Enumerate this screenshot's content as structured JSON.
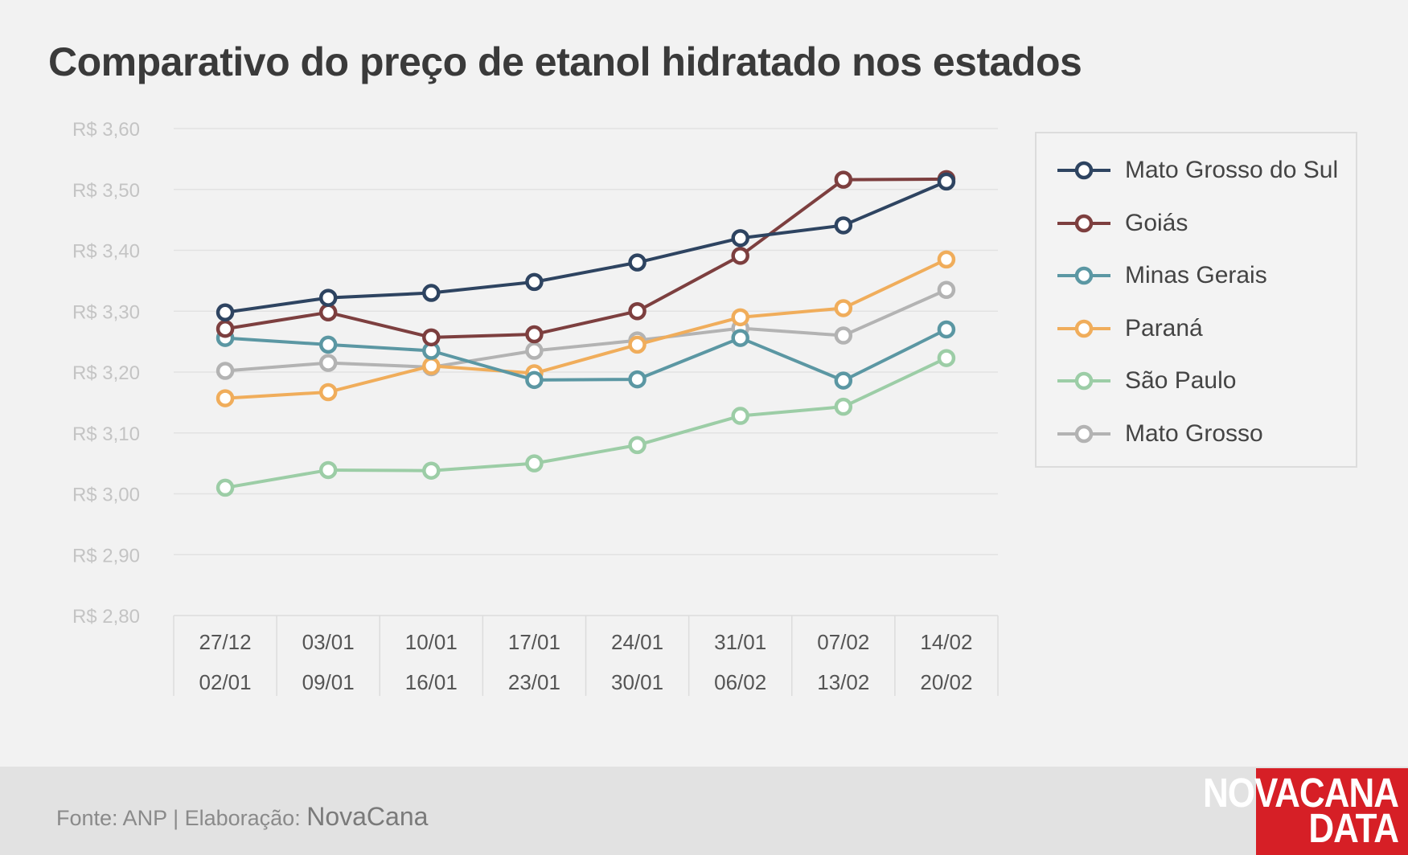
{
  "header": {
    "title": "Comparativo do preço de etanol hidratado nos estados"
  },
  "chart_data": {
    "type": "line",
    "title": "Comparativo do preço de etanol hidratado nos estados",
    "categories": [
      [
        "27/12",
        "02/01"
      ],
      [
        "03/01",
        "09/01"
      ],
      [
        "10/01",
        "16/01"
      ],
      [
        "17/01",
        "23/01"
      ],
      [
        "24/01",
        "30/01"
      ],
      [
        "31/01",
        "06/02"
      ],
      [
        "07/02",
        "13/02"
      ],
      [
        "14/02",
        "20/02"
      ]
    ],
    "ylim": [
      2.8,
      3.6
    ],
    "yticks": [
      3.6,
      3.5,
      3.4,
      3.3,
      3.2,
      3.1,
      3.0,
      2.9,
      2.8
    ],
    "ytick_labels": [
      "R$ 3,60",
      "R$ 3,50",
      "R$ 3,40",
      "R$ 3,30",
      "R$ 3,20",
      "R$ 3,10",
      "R$ 3,00",
      "R$ 2,90",
      "R$ 2,80"
    ],
    "grid": true,
    "legend_position": "right",
    "series": [
      {
        "name": "Mato Grosso do Sul",
        "color": "#2e4461",
        "values": [
          3.298,
          3.322,
          3.33,
          3.348,
          3.38,
          3.42,
          3.441,
          3.513
        ]
      },
      {
        "name": "Goiás",
        "color": "#7d3f3f",
        "values": [
          3.271,
          3.298,
          3.257,
          3.262,
          3.3,
          3.391,
          3.516,
          3.517
        ]
      },
      {
        "name": "Minas Gerais",
        "color": "#5b97a3",
        "values": [
          3.256,
          3.245,
          3.235,
          3.187,
          3.188,
          3.256,
          3.186,
          3.27
        ]
      },
      {
        "name": "Paraná",
        "color": "#f0ad5b",
        "values": [
          3.157,
          3.167,
          3.21,
          3.198,
          3.245,
          3.29,
          3.305,
          3.385
        ]
      },
      {
        "name": "São Paulo",
        "color": "#9ccda6",
        "values": [
          3.01,
          3.039,
          3.038,
          3.05,
          3.08,
          3.128,
          3.143,
          3.223
        ]
      },
      {
        "name": "Mato Grosso",
        "color": "#b3b3b3",
        "values": [
          3.202,
          3.215,
          3.208,
          3.235,
          3.252,
          3.272,
          3.26,
          3.335
        ]
      }
    ]
  },
  "footer": {
    "source_text": "Fonte: ANP | Elaboração: ",
    "brand": "NovaCana"
  },
  "logo": {
    "line1": "NOVACANA",
    "line2": "DATA"
  }
}
